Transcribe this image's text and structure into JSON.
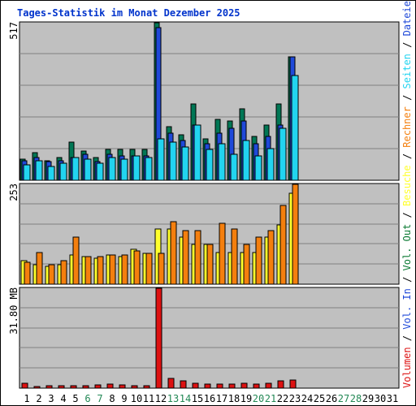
{
  "title": "Tages-Statistik im Monat Dezember 2025",
  "colors": {
    "anfragen": "#007755",
    "dateien": "#1f49d9",
    "seiten": "#22d4f0",
    "besuche": "#ffff2c",
    "rechner": "#f47f0e",
    "vol_out": "#0a7a32",
    "vol_in": "#1f49d9",
    "volumen": "#dd1111",
    "weekend": "#228855",
    "weekday": "#000000",
    "panel_bg": "#c0c0c0",
    "grid": "#808080"
  },
  "chart_data": [
    {
      "type": "bar",
      "title": "Tages-Statistik im Monat Dezember 2025",
      "ymax_label": "517",
      "ylim": [
        0,
        517
      ],
      "categories": [
        "1",
        "2",
        "3",
        "4",
        "5",
        "6",
        "7",
        "8",
        "9",
        "10",
        "11",
        "12",
        "13",
        "14",
        "15",
        "16",
        "17",
        "18",
        "19",
        "20",
        "21",
        "22",
        "23",
        "24",
        "25",
        "26",
        "27",
        "28",
        "29",
        "30",
        "31"
      ],
      "series": [
        {
          "name": "Anfragen",
          "values": [
            70,
            90,
            65,
            75,
            125,
            95,
            75,
            100,
            100,
            100,
            100,
            517,
            175,
            150,
            250,
            135,
            200,
            195,
            235,
            145,
            180,
            250,
            405,
            0,
            0,
            0,
            0,
            0,
            0,
            0,
            0
          ]
        },
        {
          "name": "Dateien",
          "values": [
            65,
            75,
            60,
            65,
            75,
            85,
            60,
            85,
            80,
            80,
            80,
            500,
            155,
            130,
            180,
            120,
            155,
            170,
            195,
            120,
            145,
            180,
            405,
            0,
            0,
            0,
            0,
            0,
            0,
            0,
            0
          ]
        },
        {
          "name": "Seiten",
          "values": [
            50,
            65,
            45,
            55,
            75,
            70,
            55,
            75,
            70,
            80,
            75,
            135,
            125,
            110,
            180,
            100,
            120,
            85,
            130,
            80,
            105,
            170,
            345,
            0,
            0,
            0,
            0,
            0,
            0,
            0,
            0
          ]
        }
      ]
    },
    {
      "type": "bar",
      "ymax_label": "253",
      "ylim": [
        0,
        253
      ],
      "categories": [
        "1",
        "2",
        "3",
        "4",
        "5",
        "6",
        "7",
        "8",
        "9",
        "10",
        "11",
        "12",
        "13",
        "14",
        "15",
        "16",
        "17",
        "18",
        "19",
        "20",
        "21",
        "22",
        "23",
        "24",
        "25",
        "26",
        "27",
        "28",
        "29",
        "30",
        "31"
      ],
      "series": [
        {
          "name": "Besuche",
          "values": [
            60,
            50,
            45,
            50,
            75,
            70,
            65,
            75,
            70,
            88,
            78,
            140,
            140,
            120,
            100,
            100,
            80,
            80,
            80,
            80,
            120,
            150,
            230,
            0,
            0,
            0,
            0,
            0,
            0,
            0,
            0
          ]
        },
        {
          "name": "Rechner",
          "values": [
            55,
            80,
            50,
            60,
            120,
            70,
            70,
            75,
            75,
            85,
            78,
            78,
            158,
            135,
            135,
            100,
            155,
            140,
            100,
            120,
            135,
            200,
            253,
            0,
            0,
            0,
            0,
            0,
            0,
            0,
            0
          ]
        }
      ]
    },
    {
      "type": "bar",
      "ymax_label": "31.80 MB",
      "ylim": [
        0,
        31.8
      ],
      "categories": [
        "1",
        "2",
        "3",
        "4",
        "5",
        "6",
        "7",
        "8",
        "9",
        "10",
        "11",
        "12",
        "13",
        "14",
        "15",
        "16",
        "17",
        "18",
        "19",
        "20",
        "21",
        "22",
        "23",
        "24",
        "25",
        "26",
        "27",
        "28",
        "29",
        "30",
        "31"
      ],
      "series": [
        {
          "name": "Volumen",
          "values": [
            1.6,
            0.6,
            0.7,
            0.8,
            0.7,
            0.9,
            1.0,
            1.4,
            1.0,
            0.9,
            0.9,
            31.8,
            3.0,
            2.4,
            1.6,
            1.2,
            1.3,
            1.2,
            1.5,
            1.4,
            1.5,
            2.2,
            2.6,
            0,
            0,
            0,
            0,
            0,
            0,
            0,
            0
          ]
        }
      ]
    }
  ],
  "legend": [
    {
      "label": "Volumen",
      "color_key": "volumen"
    },
    {
      "label": "Vol. In",
      "color_key": "vol_in"
    },
    {
      "label": "Vol. Out",
      "color_key": "vol_out"
    },
    {
      "label": "Besuche",
      "color_key": "besuche"
    },
    {
      "label": "Rechner",
      "color_key": "rechner"
    },
    {
      "label": "Seiten",
      "color_key": "seiten"
    },
    {
      "label": "Dateien",
      "color_key": "dateien"
    },
    {
      "label": "Anfragen",
      "color_key": "anfragen"
    }
  ],
  "weekend_days": [
    "6",
    "7",
    "13",
    "14",
    "20",
    "21",
    "27",
    "28"
  ]
}
